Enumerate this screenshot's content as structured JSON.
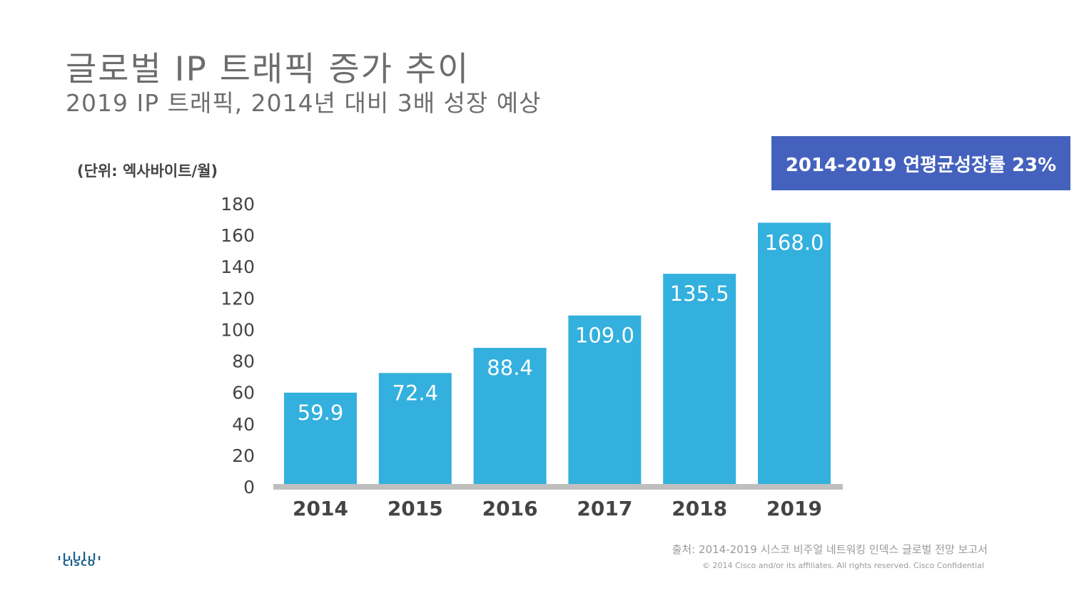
{
  "title": "글로벌 IP 트래픽 증가 추이",
  "subtitle": "2019 IP 트래픽, 2014년 대비 3배 성장 예상",
  "unit_label": "(단위: 엑사바이트/월)",
  "cagr_label": "2014-2019 연평균성장률 23%",
  "source": "출처: 2014-2019 시스코 비주얼 네트워킹 인덱스 글로벌 전망 보고서",
  "copyright": "© 2014  Cisco and/or its affiliates. All rights reserved.   Cisco Confidential",
  "logo_text": "CISCO",
  "colors": {
    "bar": "#33b0de",
    "accent_box": "#4462bd",
    "axis": "#bfbfbf"
  },
  "chart_data": {
    "type": "bar",
    "categories": [
      "2014",
      "2015",
      "2016",
      "2017",
      "2018",
      "2019"
    ],
    "values": [
      59.9,
      72.4,
      88.4,
      109.0,
      135.5,
      168.0
    ],
    "value_labels": [
      "59.9",
      "72.4",
      "88.4",
      "109.0",
      "135.5",
      "168.0"
    ],
    "yticks": [
      "0",
      "20",
      "40",
      "60",
      "80",
      "100",
      "120",
      "140",
      "160",
      "180"
    ],
    "ylim": [
      0,
      180
    ],
    "grid": false,
    "legend": false
  }
}
